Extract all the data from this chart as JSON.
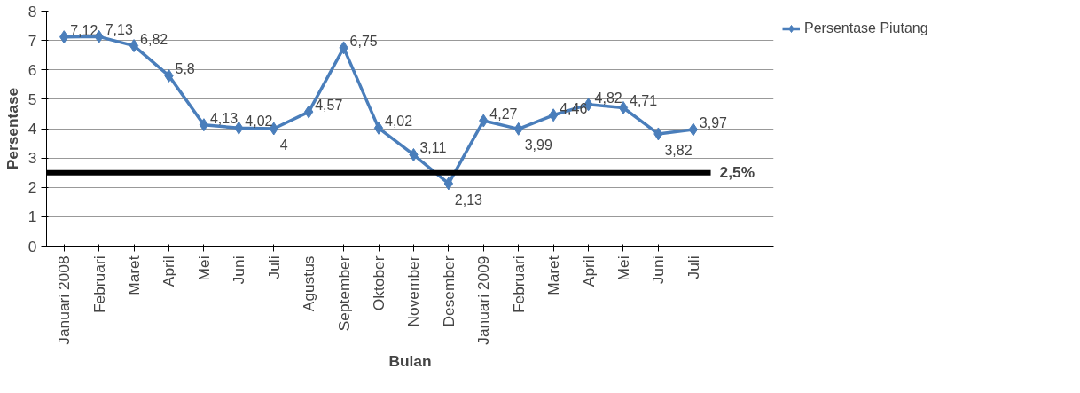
{
  "chart_data": {
    "type": "line",
    "xlabel": "Bulan",
    "ylabel": "Persentase",
    "categories": [
      "Januari 2008",
      "Februari",
      "Maret",
      "April",
      "Mei",
      "Juni",
      "Juli",
      "Agustus",
      "September",
      "Oktober",
      "November",
      "Desember",
      "Januari 2009",
      "Februari",
      "Maret",
      "April",
      "Mei",
      "Juni",
      "Juli"
    ],
    "series": [
      {
        "name": "Persentase Piutang",
        "color": "#4a7ebb",
        "values": [
          7.12,
          7.13,
          6.82,
          5.8,
          4.13,
          4.02,
          4,
          4.57,
          6.75,
          4.02,
          3.11,
          2.13,
          4.27,
          3.99,
          4.46,
          4.82,
          4.71,
          3.82,
          3.97
        ],
        "value_labels": [
          "7,12",
          "7,13",
          "6,82",
          "5,8",
          "4,13",
          "4,02",
          "4",
          "4,57",
          "6,75",
          "4,02",
          "3,11",
          "2,13",
          "4,27",
          "3,99",
          "4,46",
          "4,82",
          "4,71",
          "3,82",
          "3,97"
        ]
      }
    ],
    "ylim": [
      0,
      8
    ],
    "yticks": [
      0,
      1,
      2,
      3,
      4,
      5,
      6,
      7,
      8
    ],
    "grid": "y",
    "legend": "right",
    "marker": "diamond",
    "line_style": "solid",
    "ref_lines": [
      {
        "axis": "y",
        "value": 2.5,
        "label": "2,5%",
        "color": "#000000",
        "line_style": "solid"
      }
    ]
  }
}
